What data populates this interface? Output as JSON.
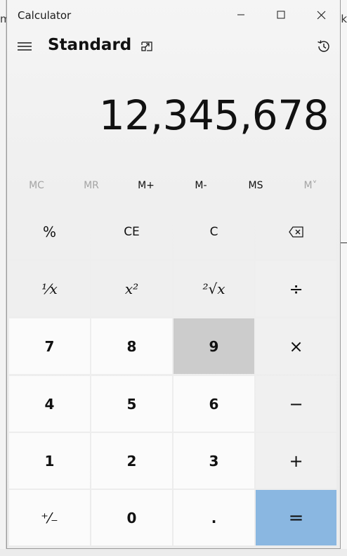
{
  "background": {
    "left_text": "m",
    "right_text": "k"
  },
  "window": {
    "title": "Calculator",
    "controls": {
      "minimize": "minimize-icon",
      "maximize": "maximize-icon",
      "close": "close-icon"
    }
  },
  "header": {
    "mode": "Standard",
    "icons": [
      "hamburger-menu-icon",
      "keep-on-top-icon",
      "history-icon"
    ]
  },
  "display": {
    "value": "12,345,678"
  },
  "memory": [
    {
      "label": "MC",
      "enabled": false
    },
    {
      "label": "MR",
      "enabled": false
    },
    {
      "label": "M+",
      "enabled": true
    },
    {
      "label": "M-",
      "enabled": true
    },
    {
      "label": "MS",
      "enabled": true
    },
    {
      "label": "M˅",
      "enabled": false
    }
  ],
  "keys": {
    "percent": "%",
    "ce": "CE",
    "clear": "C",
    "backspace": "backspace-icon",
    "reciprocal": "¹⁄x",
    "square": "x²",
    "sqrt": "²√x",
    "divide": "÷",
    "seven": "7",
    "eight": "8",
    "nine": "9",
    "multiply": "×",
    "four": "4",
    "five": "5",
    "six": "6",
    "subtract": "−",
    "one": "1",
    "two": "2",
    "three": "3",
    "add": "+",
    "negate": "⁺⁄₋",
    "zero": "0",
    "decimal": ".",
    "equals": "="
  },
  "colors": {
    "equals_bg": "#8ab7e1",
    "pressed_bg": "#cccccc"
  }
}
